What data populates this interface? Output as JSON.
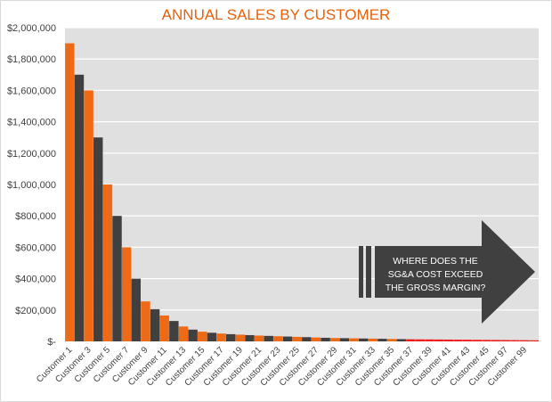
{
  "chart_data": {
    "type": "bar",
    "title": "ANNUAL SALES BY CUSTOMER",
    "xlabel": "",
    "ylabel": "",
    "ylim": [
      0,
      2000000
    ],
    "y_ticks": [
      0,
      200000,
      400000,
      600000,
      800000,
      1000000,
      1200000,
      1400000,
      1600000,
      1800000,
      2000000
    ],
    "y_tick_labels": [
      "$-",
      "$200,000",
      "$400,000",
      "$600,000",
      "$800,000",
      "$1,000,000",
      "$1,200,000",
      "$1,400,000",
      "$1,600,000",
      "$1,800,000",
      "$2,000,000"
    ],
    "grid": true,
    "legend": "none",
    "x_tick_labels": [
      "Customer 1",
      "Customer 3",
      "Customer 5",
      "Customer 7",
      "Customer 9",
      "Customer 11",
      "Customer 13",
      "Customer 15",
      "Customer 17",
      "Customer 19",
      "Customer 21",
      "Customer 23",
      "Customer 25",
      "Customer 27",
      "Customer 29",
      "Customer 31",
      "Customer 33",
      "Customer 35",
      "Customer 37",
      "Customer 39",
      "Customer 41",
      "Customer 43",
      "Customer 45",
      "Customer 97",
      "Customer 99"
    ],
    "values": [
      1900000,
      1700000,
      1600000,
      1300000,
      1000000,
      800000,
      600000,
      400000,
      255000,
      205000,
      165000,
      130000,
      95000,
      75000,
      62000,
      55000,
      50000,
      46000,
      43000,
      40000,
      37000,
      35000,
      33000,
      31000,
      29000,
      27000,
      25000,
      23000,
      21500,
      20500,
      19500,
      18500,
      17500,
      16500,
      15500,
      14500,
      13500,
      13000,
      12500,
      12000,
      11500,
      11000,
      10500,
      10000,
      9500,
      9000,
      8500,
      8000,
      7500,
      7000
    ],
    "annotation": [
      "WHERE DOES THE",
      "SG&A COST EXCEED",
      "THE GROSS MARGIN?"
    ],
    "colors": {
      "primary": "#ee6a16",
      "secondary": "#404040",
      "highlight": "#ee1d1d",
      "plot_background": "#e0e0e0",
      "gridline": "#ffffff",
      "callout": "#404040"
    }
  }
}
